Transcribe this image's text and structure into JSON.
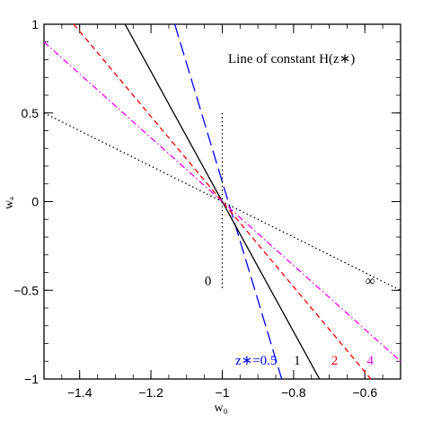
{
  "chart_data": {
    "type": "line",
    "title": "",
    "annotation": "Line of constant H(z∗)",
    "xlabel": "w₀",
    "ylabel": "wₐ",
    "xlim": [
      -1.5,
      -0.5
    ],
    "ylim": [
      -1,
      1
    ],
    "x_ticks": [
      -1.4,
      -1.2,
      -1.0,
      -0.8,
      -0.6
    ],
    "x_tick_labels": [
      "−1.4",
      "−1.2",
      "−1",
      "−0.8",
      "−0.6"
    ],
    "y_ticks": [
      -1,
      -0.5,
      0,
      0.5,
      1
    ],
    "y_tick_labels": [
      "−1",
      "−0.5",
      "0",
      "0.5",
      "1"
    ],
    "grid": false,
    "series": [
      {
        "name": "z∗=0.5",
        "color": "#0000ff",
        "dash": "long-dash",
        "x": [
          -1.1333,
          -0.8333
        ],
        "y": [
          1,
          -1
        ],
        "label_pos": [
          -0.905,
          -0.92
        ]
      },
      {
        "name": "1",
        "color": "#000000",
        "dash": "solid",
        "x": [
          -1.2727,
          -0.7273
        ],
        "y": [
          1,
          -1
        ],
        "label_pos": [
          -0.79,
          -0.92
        ]
      },
      {
        "name": "2",
        "color": "#ff0000",
        "dash": "dashed",
        "x": [
          -1.4167,
          -0.5833
        ],
        "y": [
          1,
          -1
        ],
        "label_pos": [
          -0.685,
          -0.92
        ]
      },
      {
        "name": "4",
        "color": "#ff00ff",
        "dash": "dash-dot",
        "x": [
          -1.5,
          -0.5
        ],
        "y": [
          0.9,
          -0.9
        ],
        "label_pos": [
          -0.585,
          -0.92
        ]
      },
      {
        "name": "∞",
        "color": "#000000",
        "dash": "dotted",
        "x": [
          -1.5,
          -0.5
        ],
        "y": [
          0.5,
          -0.5
        ],
        "label_pos": [
          -0.585,
          -0.47
        ]
      },
      {
        "name": "0",
        "color": "#000000",
        "dash": "dotted",
        "x": [
          -1.0,
          -1.0
        ],
        "y": [
          0.5,
          -0.5
        ],
        "label_pos": [
          -1.04,
          -0.47
        ]
      }
    ]
  }
}
